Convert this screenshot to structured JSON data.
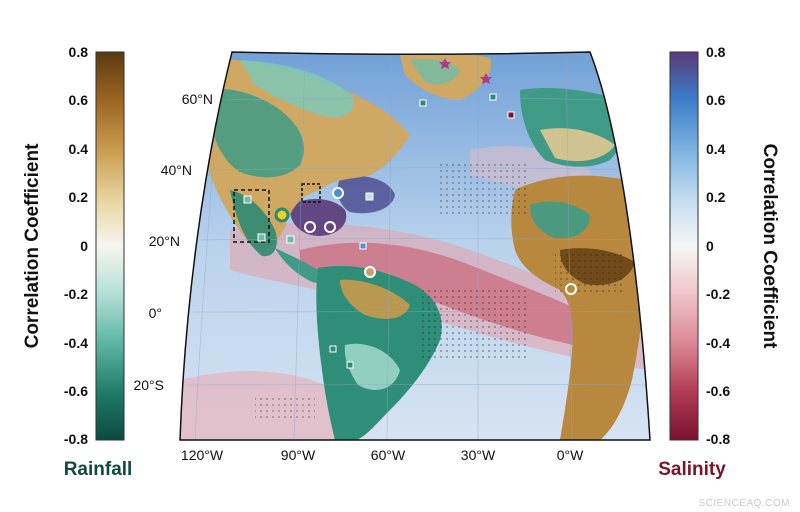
{
  "left_colorbar": {
    "title": "Correlation Coefficient",
    "name": "Rainfall",
    "name_color": "#0f4a3e",
    "ticks": [
      "0.8",
      "0.6",
      "0.4",
      "0.2",
      "0",
      "-0.2",
      "-0.4",
      "-0.6",
      "-0.8"
    ],
    "colors": [
      "#5a3a10",
      "#9a6420",
      "#c99a4c",
      "#e8d49e",
      "#f6f6f0",
      "#b6e0d6",
      "#5cb6a2",
      "#1f7a68",
      "#0b4a3f"
    ]
  },
  "right_colorbar": {
    "title": "Correlation Coefficient",
    "name": "Salinity",
    "name_color": "#7a1428",
    "ticks": [
      "0.8",
      "0.6",
      "0.4",
      "0.2",
      "0",
      "-0.2",
      "-0.4",
      "-0.6",
      "-0.8"
    ],
    "colors": [
      "#5a3a78",
      "#3a7cc8",
      "#7cb2e0",
      "#c4dcf0",
      "#f6f6f6",
      "#f0c6cc",
      "#dc8894",
      "#b03a52",
      "#7a1030"
    ]
  },
  "map": {
    "lat_labels": [
      "60°N",
      "40°N",
      "20°N",
      "0°",
      "20°S"
    ],
    "lon_labels": [
      "120°W",
      "90°W",
      "60°W",
      "30°W",
      "0°W"
    ]
  },
  "watermark": "SCIENCEAQ.COM"
}
